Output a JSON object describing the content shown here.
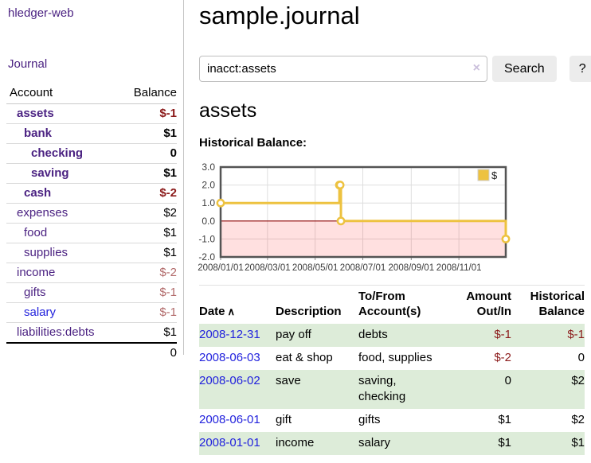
{
  "colors": {
    "link_purple": "#4b2282",
    "link_blue": "#2222dd",
    "negative_strong": "#8b1a1a",
    "negative_soft": "#b26b6b",
    "text": "#000000",
    "stripe_green": "#ddecd9",
    "series_gold": "#edc240",
    "zero_line": "#8b0000",
    "negative_region": "rgba(255,0,0,0.12)"
  },
  "app": {
    "brand": "hledger-web",
    "nav_journal": "Journal"
  },
  "sidebar": {
    "headers": {
      "account": "Account",
      "balance": "Balance"
    },
    "accounts": [
      {
        "label": "assets",
        "balance": "$-1",
        "indent": 1,
        "bold": true,
        "label_style": "link_purple",
        "balance_style": "negative_strong"
      },
      {
        "label": "bank",
        "balance": "$1",
        "indent": 2,
        "bold": true,
        "label_style": "link_purple",
        "balance_style": "text"
      },
      {
        "label": "checking",
        "balance": "0",
        "indent": 3,
        "bold": true,
        "label_style": "link_purple",
        "balance_style": "text"
      },
      {
        "label": "saving",
        "balance": "$1",
        "indent": 3,
        "bold": true,
        "label_style": "link_purple",
        "balance_style": "text"
      },
      {
        "label": "cash",
        "balance": "$-2",
        "indent": 2,
        "bold": true,
        "label_style": "link_purple",
        "balance_style": "negative_strong"
      },
      {
        "label": "expenses",
        "balance": "$2",
        "indent": 1,
        "bold": false,
        "label_style": "link_purple",
        "balance_style": "text"
      },
      {
        "label": "food",
        "balance": "$1",
        "indent": 2,
        "bold": false,
        "label_style": "link_purple",
        "balance_style": "text"
      },
      {
        "label": "supplies",
        "balance": "$1",
        "indent": 2,
        "bold": false,
        "label_style": "link_purple",
        "balance_style": "text"
      },
      {
        "label": "income",
        "balance": "$-2",
        "indent": 1,
        "bold": false,
        "label_style": "link_purple",
        "balance_style": "negative_soft"
      },
      {
        "label": "gifts",
        "balance": "$-1",
        "indent": 2,
        "bold": false,
        "label_style": "link_purple",
        "balance_style": "negative_soft"
      },
      {
        "label": "salary",
        "balance": "$-1",
        "indent": 2,
        "bold": false,
        "label_style": "link_blue",
        "balance_style": "negative_soft"
      },
      {
        "label": "liabilities:debts",
        "balance": "$1",
        "indent": 1,
        "bold": false,
        "label_style": "link_purple",
        "balance_style": "text"
      }
    ],
    "total": "0"
  },
  "main": {
    "title": "sample.journal",
    "search": {
      "value": "inacct:assets",
      "clear_icon": "×",
      "button_label": "Search",
      "help_label": "?"
    },
    "account_heading": "assets",
    "section_label": "Historical Balance:"
  },
  "chart_data": {
    "type": "line",
    "step": true,
    "title": "Historical Balance",
    "series": [
      {
        "name": "$",
        "color": "#edc240",
        "points": [
          [
            "2008-01-01",
            1
          ],
          [
            "2008-06-01",
            2
          ],
          [
            "2008-06-02",
            2
          ],
          [
            "2008-06-03",
            0
          ],
          [
            "2008-12-31",
            -1
          ]
        ]
      }
    ],
    "xrange": [
      "2008-01-01",
      "2008-12-31"
    ],
    "ylim": [
      -2,
      3
    ],
    "yticks": [
      3,
      2,
      1,
      0,
      -1,
      -2
    ],
    "ytick_labels": [
      "3.0",
      "2.0",
      "1.0",
      "0.0",
      "-1.0",
      "-2.0"
    ],
    "xticks": [
      "2008/01/01",
      "2008/03/01",
      "2008/05/01",
      "2008/07/01",
      "2008/09/01",
      "2008/11/01"
    ],
    "grid": true,
    "legend_position": "top-right",
    "negative_region": true
  },
  "register": {
    "headers": [
      "Date",
      "Description",
      "To/From Account(s)",
      "Amount Out/In",
      "Historical Balance"
    ],
    "sort_icon": "∧",
    "rows": [
      {
        "date": "2008-12-31",
        "description": "pay off",
        "accounts": "debts",
        "amount": "$-1",
        "balance": "$-1",
        "amount_style": "negative_strong",
        "balance_style": "negative_strong"
      },
      {
        "date": "2008-06-03",
        "description": "eat & shop",
        "accounts": "food, supplies",
        "amount": "$-2",
        "balance": "0",
        "amount_style": "negative_strong",
        "balance_style": "text"
      },
      {
        "date": "2008-06-02",
        "description": "save",
        "accounts": "saving, checking",
        "amount": "0",
        "balance": "$2",
        "amount_style": "text",
        "balance_style": "text"
      },
      {
        "date": "2008-06-01",
        "description": "gift",
        "accounts": "gifts",
        "amount": "$1",
        "balance": "$2",
        "amount_style": "text",
        "balance_style": "text"
      },
      {
        "date": "2008-01-01",
        "description": "income",
        "accounts": "salary",
        "amount": "$1",
        "balance": "$1",
        "amount_style": "text",
        "balance_style": "text"
      }
    ]
  }
}
